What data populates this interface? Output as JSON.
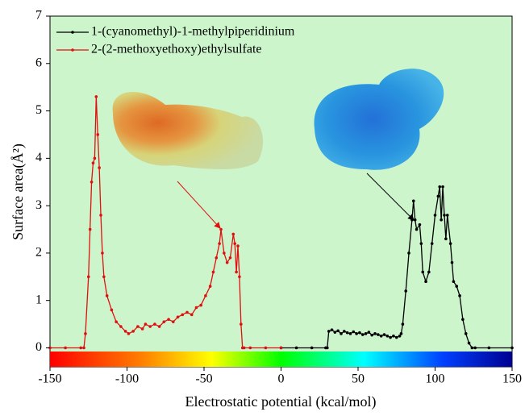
{
  "chart_data": {
    "type": "line",
    "xlabel": "Electrostatic potential (kcal/mol)",
    "ylabel": "Surface area(Å²)",
    "xlim": [
      -150,
      150
    ],
    "xticks": [
      -150,
      -100,
      -50,
      0,
      50,
      100,
      150
    ],
    "ylim": [
      -0.4,
      7
    ],
    "yticks": [
      0,
      1,
      2,
      3,
      4,
      5,
      6,
      7
    ],
    "legend": "upper left",
    "series": [
      {
        "name": "1-(cyanomethyl)-1-methylpiperidinium",
        "color": "#000000",
        "x": [
          0,
          10,
          20,
          29,
          30,
          31,
          33,
          35,
          37,
          39,
          41,
          43,
          45,
          47,
          49,
          51,
          53,
          55,
          57,
          59,
          61,
          63,
          65,
          67,
          69,
          71,
          73,
          75,
          77,
          78,
          79,
          81,
          83,
          85,
          86,
          87,
          88,
          90,
          91,
          92,
          94,
          96,
          98,
          100,
          102,
          103,
          104,
          105,
          106,
          107,
          108,
          110,
          111,
          112,
          114,
          116,
          118,
          120,
          122,
          124,
          126,
          135,
          150
        ],
        "values": [
          0,
          0,
          0,
          0,
          0,
          0.35,
          0.38,
          0.33,
          0.36,
          0.3,
          0.35,
          0.32,
          0.3,
          0.34,
          0.3,
          0.32,
          0.28,
          0.3,
          0.33,
          0.27,
          0.3,
          0.28,
          0.25,
          0.28,
          0.25,
          0.22,
          0.25,
          0.22,
          0.25,
          0.3,
          0.5,
          1.2,
          2.0,
          2.7,
          3.1,
          2.7,
          2.5,
          2.6,
          2.2,
          1.6,
          1.4,
          1.6,
          2.2,
          2.8,
          3.2,
          3.4,
          2.7,
          3.4,
          2.8,
          2.3,
          2.8,
          2.2,
          1.8,
          1.4,
          1.3,
          1.1,
          0.6,
          0.3,
          0.1,
          0,
          0,
          0,
          0
        ]
      },
      {
        "name": "2-(2-methoxyethoxy)ethylsulfate",
        "color": "#e01010",
        "x": [
          -150,
          -140,
          -130,
          -128,
          -127,
          -125,
          -124,
          -123,
          -122,
          -121,
          -120,
          -119,
          -118,
          -117,
          -116,
          -115,
          -113,
          -110,
          -107,
          -104,
          -101,
          -99,
          -96,
          -93,
          -90,
          -88,
          -85,
          -82,
          -79,
          -76,
          -73,
          -70,
          -67,
          -64,
          -61,
          -58,
          -55,
          -52,
          -49,
          -46,
          -44,
          -42,
          -40,
          -39,
          -37,
          -35,
          -33,
          -31,
          -30,
          -29,
          -28,
          -27,
          -26,
          -25,
          -24,
          -20,
          -10,
          0
        ],
        "values": [
          0,
          0,
          0,
          0,
          0.3,
          1.5,
          2.5,
          3.5,
          3.9,
          4.0,
          5.3,
          4.5,
          3.8,
          2.8,
          2.0,
          1.5,
          1.1,
          0.8,
          0.55,
          0.45,
          0.35,
          0.3,
          0.35,
          0.45,
          0.4,
          0.5,
          0.45,
          0.5,
          0.45,
          0.55,
          0.6,
          0.55,
          0.65,
          0.7,
          0.75,
          0.7,
          0.85,
          0.9,
          1.1,
          1.3,
          1.6,
          1.9,
          2.2,
          2.5,
          2.0,
          1.8,
          1.9,
          2.4,
          2.2,
          1.6,
          2.15,
          1.5,
          0.5,
          0,
          0,
          0,
          0,
          0
        ]
      }
    ]
  }
}
